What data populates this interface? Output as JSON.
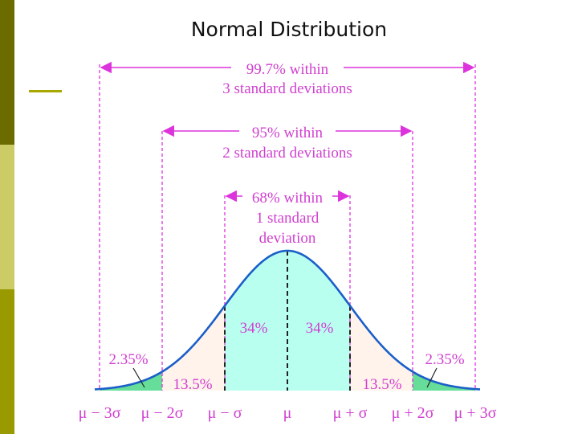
{
  "title": "Normal Distribution",
  "colors": {
    "sidebar": [
      "#6b6b00",
      "#cccc66",
      "#999900"
    ],
    "accent_line": "#a8a800",
    "guide": "#dd33dd",
    "curve": "#1a5fc8",
    "area_1sd": "#b8fff0",
    "area_2sd": "#fff3ec",
    "area_3sd": "#66dd99",
    "text": "#d040d0",
    "label_text": "#222222"
  },
  "annotations": {
    "within_3sd": [
      "99.7% within",
      "3 standard deviations"
    ],
    "within_2sd": [
      "95% within",
      "2 standard deviations"
    ],
    "within_1sd": [
      "68% within",
      "1 standard",
      "deviation"
    ]
  },
  "region_labels": {
    "left_1sd": "34%",
    "right_1sd": "34%",
    "left_2sd": "13.5%",
    "right_2sd": "13.5%",
    "left_3sd": "2.35%",
    "right_3sd": "2.35%"
  },
  "axis_labels": [
    "μ − 3σ",
    "μ − 2σ",
    "μ − σ",
    "μ",
    "μ + σ",
    "μ + 2σ",
    "μ + 3σ"
  ]
}
